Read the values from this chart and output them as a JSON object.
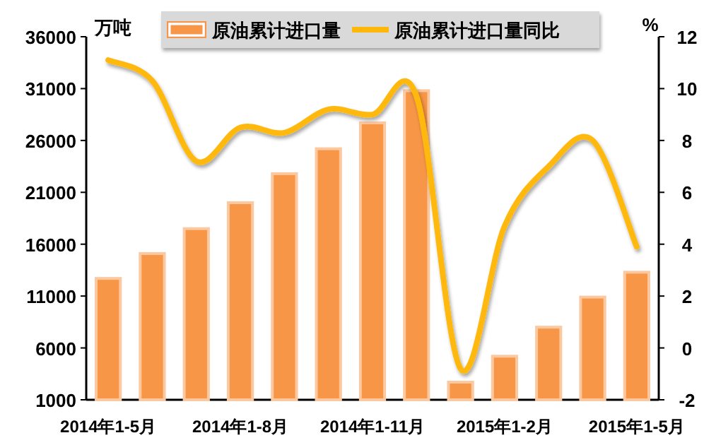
{
  "chart_data": {
    "type": "bar",
    "categories": [
      "2014年1-5月",
      null,
      null,
      "2014年1-8月",
      null,
      null,
      "2014年1-11月",
      null,
      null,
      "2015年1-2月",
      null,
      null,
      "2015年1-5月"
    ],
    "series": [
      {
        "name": "原油累计进口量",
        "color": "#f79646",
        "values": [
          12700,
          15100,
          17500,
          20000,
          22800,
          25200,
          27700,
          30800,
          2700,
          5200,
          8000,
          10900,
          13300
        ]
      },
      {
        "name": "原油累计进口量同比",
        "type": "line",
        "axis": "y2",
        "color": "#ffb80a",
        "values": [
          11.1,
          10.3,
          7.2,
          8.5,
          8.3,
          9.2,
          9.0,
          9.7,
          -0.8,
          4.7,
          7.0,
          8.0,
          3.9
        ]
      }
    ],
    "ylabel": "万吨",
    "y2label": "%",
    "ylim": [
      1000,
      36000
    ],
    "yticks": [
      1000,
      6000,
      11000,
      16000,
      21000,
      26000,
      31000,
      36000
    ],
    "y2lim": [
      -2,
      12
    ],
    "y2ticks": [
      -2,
      0,
      2,
      4,
      6,
      8,
      10,
      12
    ],
    "legend": "top",
    "grid": false,
    "marker": "none",
    "line_style": "solid"
  }
}
